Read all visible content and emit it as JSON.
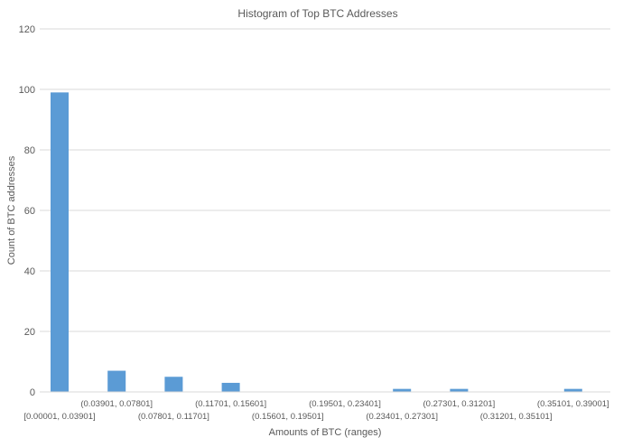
{
  "chart_data": {
    "type": "bar",
    "title": "Histogram of Top BTC Addresses",
    "xlabel": "Amounts of BTC (ranges)",
    "ylabel": "Count of BTC addresses",
    "ylim": [
      0,
      120
    ],
    "yticks": [
      0,
      20,
      40,
      60,
      80,
      100,
      120
    ],
    "grid": true,
    "legend": "none",
    "bar_color": "#5B9BD5",
    "categories": [
      "[0.00001, 0.03901]",
      "(0.03901, 0.07801]",
      "(0.07801, 0.11701]",
      "(0.11701, 0.15601]",
      "(0.15601, 0.19501]",
      "(0.19501, 0.23401]",
      "(0.23401, 0.27301]",
      "(0.27301, 0.31201]",
      "(0.31201, 0.35101]",
      "(0.35101, 0.39001]"
    ],
    "values": [
      99,
      7,
      5,
      3,
      0,
      0,
      1,
      1,
      0,
      1
    ]
  }
}
